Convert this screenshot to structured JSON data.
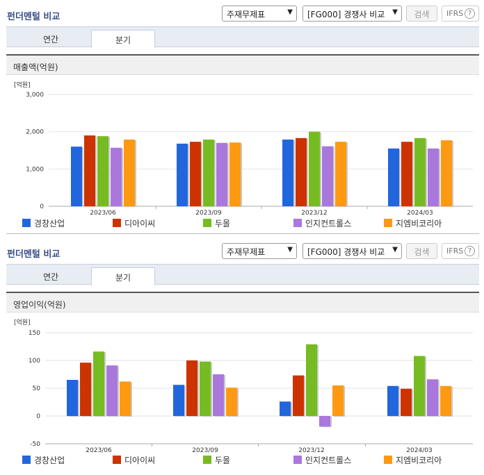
{
  "colors": [
    "#2266dd",
    "#cc3300",
    "#77bb22",
    "#aa77dd",
    "#ff9911"
  ],
  "series_names": [
    "경창산업",
    "디아이씨",
    "두올",
    "인지컨트롤스",
    "지엠비코리아"
  ],
  "panels": [
    {
      "title": "펀더멘털 비교",
      "select1": "주재무제표",
      "select2": "[FG000] 경쟁사 비교",
      "search_label": "검색",
      "ifrs_label": "IFRS",
      "tabs": [
        "연간",
        "분기"
      ],
      "active_tab": 1,
      "metric_label": "매출액(억원)"
    },
    {
      "title": "펀더멘털 비교",
      "select1": "주재무제표",
      "select2": "[FG000] 경쟁사 비교",
      "search_label": "검색",
      "ifrs_label": "IFRS",
      "tabs": [
        "연간",
        "분기"
      ],
      "active_tab": 1,
      "metric_label": "영업이익(억원)"
    }
  ],
  "chart_data": [
    {
      "type": "bar",
      "ylabel": "[억원]",
      "categories": [
        "2023/06",
        "2023/09",
        "2023/12",
        "2024/03"
      ],
      "ylim": [
        0,
        3000
      ],
      "yticks": [
        "0",
        "1,000",
        "2,000",
        "3,000"
      ],
      "ytick_values": [
        0,
        1000,
        2000,
        3000
      ],
      "series": [
        {
          "name": "경창산업",
          "values": [
            1600,
            1680,
            1790,
            1550
          ]
        },
        {
          "name": "디아이씨",
          "values": [
            1900,
            1730,
            1830,
            1730
          ]
        },
        {
          "name": "두올",
          "values": [
            1880,
            1790,
            2000,
            1830
          ]
        },
        {
          "name": "인지컨트롤스",
          "values": [
            1570,
            1700,
            1610,
            1550
          ]
        },
        {
          "name": "지엠비코리아",
          "values": [
            1790,
            1710,
            1730,
            1770
          ]
        }
      ]
    },
    {
      "type": "bar",
      "ylabel": "[억원]",
      "categories": [
        "2023/06",
        "2023/09",
        "2023/12",
        "2024/03"
      ],
      "ylim": [
        -50,
        150
      ],
      "yticks": [
        "-50",
        "0",
        "50",
        "100",
        "150"
      ],
      "ytick_values": [
        -50,
        0,
        50,
        100,
        150
      ],
      "series": [
        {
          "name": "경창산업",
          "values": [
            65,
            56,
            26,
            54
          ]
        },
        {
          "name": "디아이씨",
          "values": [
            96,
            100,
            73,
            49
          ]
        },
        {
          "name": "두올",
          "values": [
            116,
            98,
            129,
            108
          ]
        },
        {
          "name": "인지컨트롤스",
          "values": [
            91,
            75,
            -19,
            66
          ]
        },
        {
          "name": "지엠비코리아",
          "values": [
            62,
            51,
            55,
            54
          ]
        }
      ]
    }
  ]
}
